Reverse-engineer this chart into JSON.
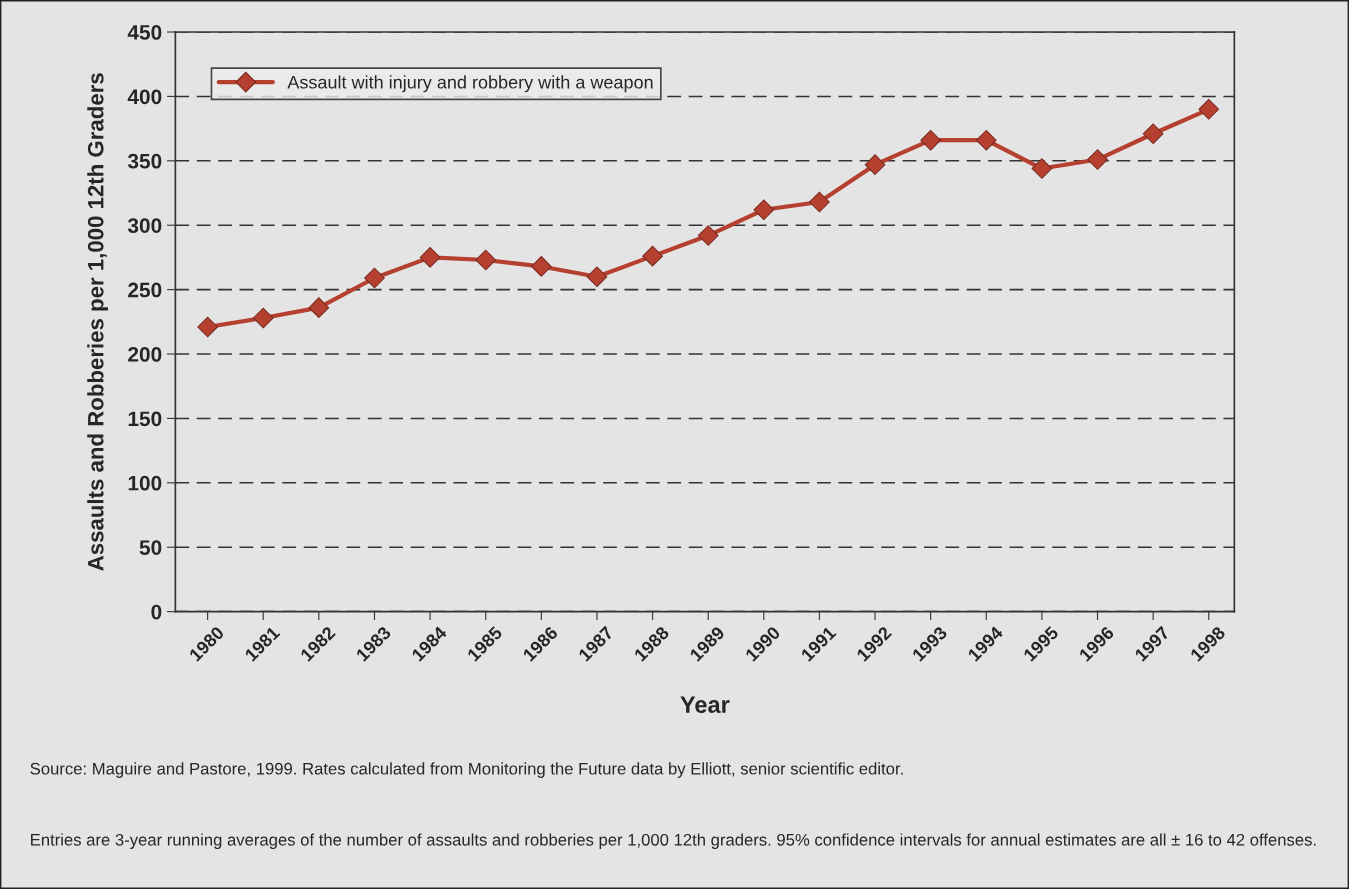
{
  "chart_data": {
    "type": "line",
    "xlabel": "Year",
    "ylabel": "Assaults and Robberies per 1,000 12th Graders",
    "categories": [
      "1980",
      "1981",
      "1982",
      "1983",
      "1984",
      "1985",
      "1986",
      "1987",
      "1988",
      "1989",
      "1990",
      "1991",
      "1992",
      "1993",
      "1994",
      "1995",
      "1996",
      "1997",
      "1998"
    ],
    "series": [
      {
        "name": "Assault with injury and robbery with a weapon",
        "color": "#b5402f",
        "values": [
          221,
          228,
          236,
          259,
          275,
          273,
          268,
          260,
          276,
          292,
          312,
          318,
          347,
          366,
          366,
          344,
          351,
          371,
          390
        ]
      }
    ],
    "ylim": [
      0,
      450
    ],
    "yticks": [
      0,
      50,
      100,
      150,
      200,
      250,
      300,
      350,
      400,
      450
    ],
    "grid": "y",
    "legend": "top left",
    "marker": "diamond",
    "line_style": "solid",
    "annotations": [
      "Source: Maguire and Pastore, 1999. Rates calculated from Monitoring the Future data by Elliott, senior scientific editor.",
      "Entries are 3-year running averages of the number of assaults and robberies per 1,000 12th graders. 95% confidence intervals for annual estimates are all ± 16 to 42 offenses."
    ]
  }
}
